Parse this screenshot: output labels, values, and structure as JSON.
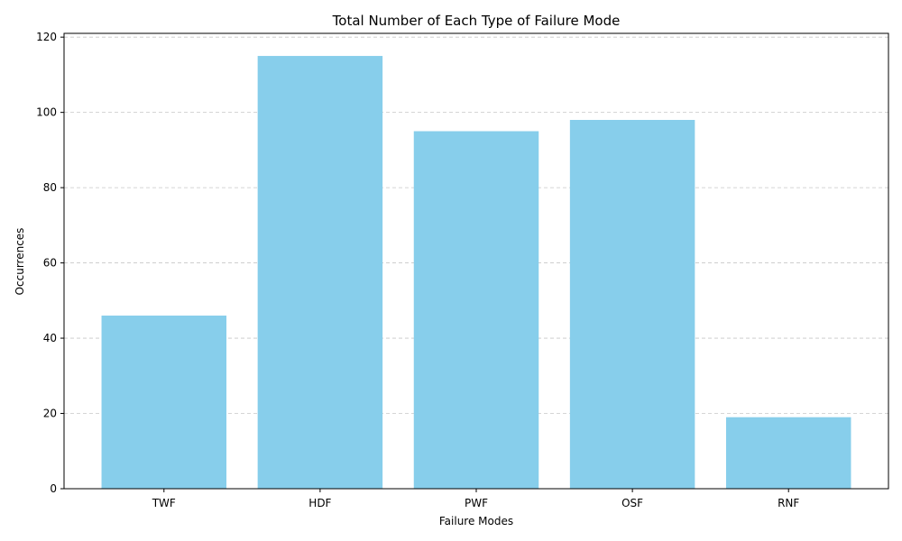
{
  "chart_data": {
    "type": "bar",
    "title": "Total Number of Each Type of Failure Mode",
    "xlabel": "Failure Modes",
    "ylabel": "Occurrences",
    "categories": [
      "TWF",
      "HDF",
      "PWF",
      "OSF",
      "RNF"
    ],
    "values": [
      46,
      115,
      95,
      98,
      19
    ],
    "ylim": [
      0,
      121
    ],
    "yticks": [
      0,
      20,
      40,
      60,
      80,
      100,
      120
    ],
    "ytick_labels": [
      "0",
      "20",
      "40",
      "60",
      "80",
      "100",
      "120"
    ],
    "grid": "y-axis dashed",
    "bar_color": "#87ceeb"
  }
}
